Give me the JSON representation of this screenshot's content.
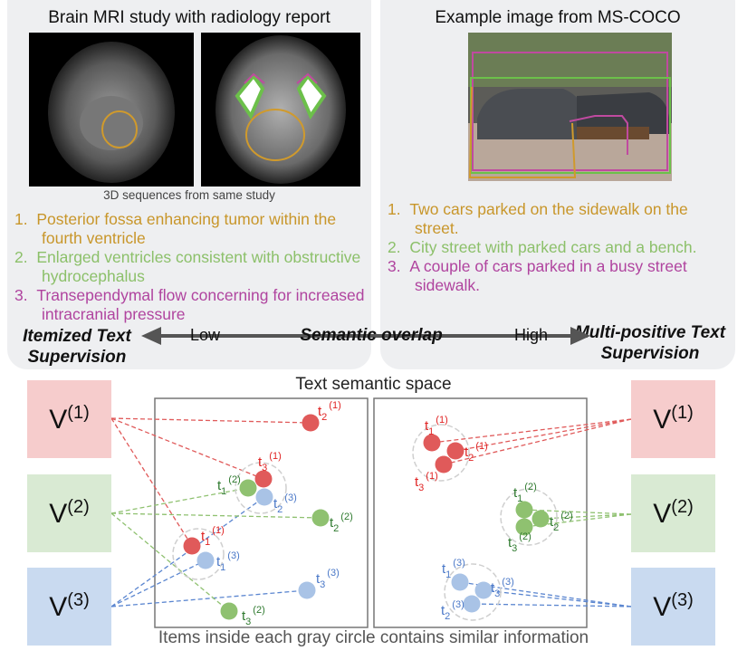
{
  "left_panel": {
    "title": "Brain MRI study with radiology report",
    "caption": "3D sequences from same study",
    "items": [
      {
        "num": "1.",
        "text": "Posterior fossa enhancing tumor within the fourth ventricle",
        "color": "#c8962a"
      },
      {
        "num": "2.",
        "text": "Enlarged ventricles consistent with obstructive hydrocephalus",
        "color": "#8cc06a"
      },
      {
        "num": "3.",
        "text": "Transependymal flow concerning for increased intracranial pressure",
        "color": "#b0449f"
      }
    ],
    "label": "Itemized Text Supervision"
  },
  "right_panel": {
    "title": "Example image from MS-COCO",
    "items": [
      {
        "num": "1.",
        "text": "Two cars parked on the sidewalk on the street.",
        "color": "#c8962a"
      },
      {
        "num": "2.",
        "text": "City street with parked cars and a bench.",
        "color": "#8cc06a"
      },
      {
        "num": "3.",
        "text": "A couple of cars parked in a busy street sidewalk.",
        "color": "#b0449f"
      }
    ],
    "label": "Multi-positive Text Supervision"
  },
  "axis": {
    "low": "Low",
    "center": "Semantic overlap",
    "high": "High"
  },
  "space_title": "Text semantic space",
  "footer": "Items inside each gray circle contains similar information",
  "visual_boxes": [
    {
      "label": "V",
      "sup": "(1)",
      "color": "#f6cccc"
    },
    {
      "label": "V",
      "sup": "(2)",
      "color": "#d9ead3"
    },
    {
      "label": "V",
      "sup": "(3)",
      "color": "#c9daf0"
    }
  ],
  "series_colors": {
    "1": {
      "dot": "#e05a5a",
      "text": "#e02424",
      "line": "#e05a5a"
    },
    "2": {
      "dot": "#8fc170",
      "text": "#2f7a2f",
      "line": "#8fc170"
    },
    "3": {
      "dot": "#a9c3e6",
      "text": "#4a78c8",
      "line": "#5b86d0"
    }
  },
  "text_points": {
    "left": [
      {
        "name": "t",
        "sub": "2",
        "sup": "(1)",
        "group": "1"
      },
      {
        "name": "t",
        "sub": "3",
        "sup": "(1)",
        "group": "1"
      },
      {
        "name": "t",
        "sub": "1",
        "sup": "(2)",
        "group": "2"
      },
      {
        "name": "t",
        "sub": "2",
        "sup": "(3)",
        "group": "3"
      },
      {
        "name": "t",
        "sub": "2",
        "sup": "(2)",
        "group": "2"
      },
      {
        "name": "t",
        "sub": "1",
        "sup": "(1)",
        "group": "1"
      },
      {
        "name": "t",
        "sub": "1",
        "sup": "(3)",
        "group": "3"
      },
      {
        "name": "t",
        "sub": "3",
        "sup": "(3)",
        "group": "3"
      },
      {
        "name": "t",
        "sub": "3",
        "sup": "(2)",
        "group": "2"
      }
    ],
    "right": [
      {
        "name": "t",
        "sub": "1",
        "sup": "(1)",
        "group": "1"
      },
      {
        "name": "t",
        "sub": "2",
        "sup": "(1)",
        "group": "1"
      },
      {
        "name": "t",
        "sub": "3",
        "sup": "(1)",
        "group": "1"
      },
      {
        "name": "t",
        "sub": "1",
        "sup": "(2)",
        "group": "2"
      },
      {
        "name": "t",
        "sub": "2",
        "sup": "(2)",
        "group": "2"
      },
      {
        "name": "t",
        "sub": "3",
        "sup": "(2)",
        "group": "2"
      },
      {
        "name": "t",
        "sub": "1",
        "sup": "(3)",
        "group": "3"
      },
      {
        "name": "t",
        "sub": "3",
        "sup": "(3)",
        "group": "3"
      },
      {
        "name": "t",
        "sub": "2",
        "sup": "(3)",
        "group": "3"
      }
    ]
  }
}
